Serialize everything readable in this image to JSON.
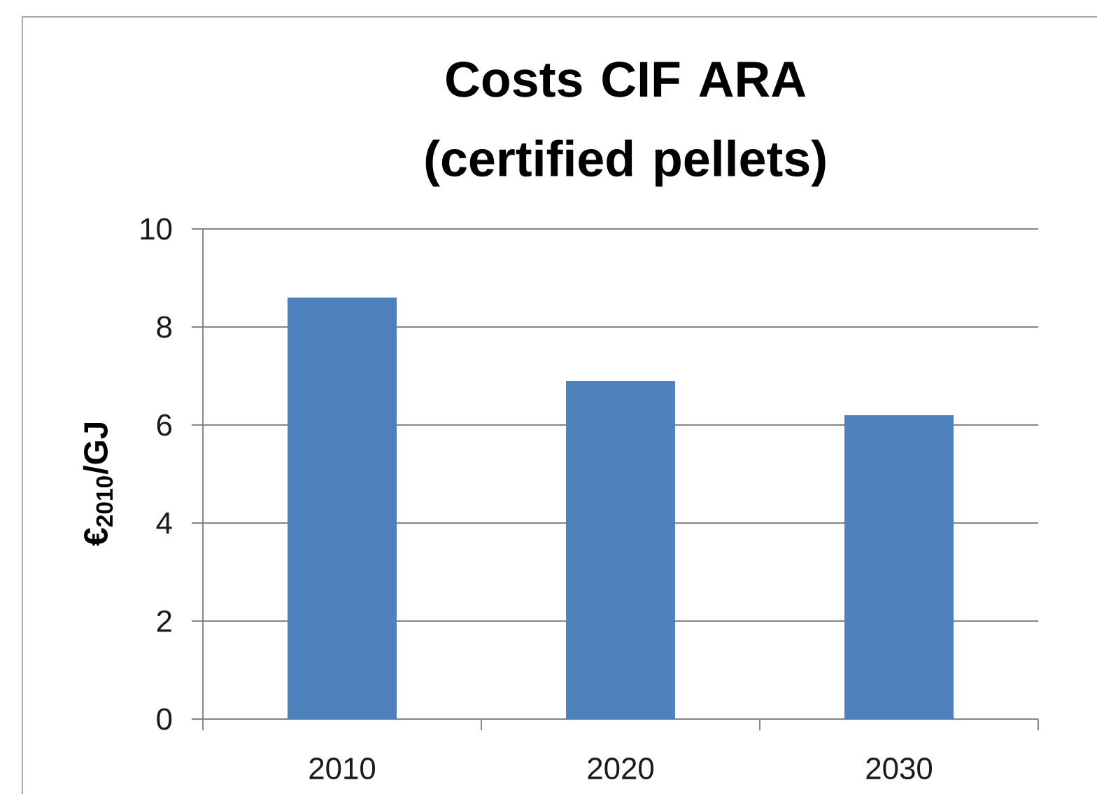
{
  "chart_data": {
    "type": "bar",
    "title": "Costs CIF ARA (certified pellets)",
    "ylabel": "€$_{2010}$/GJ",
    "categories": [
      "2010",
      "2020",
      "2030"
    ],
    "values": [
      8.6,
      6.9,
      6.2
    ],
    "color": "#4f81bd",
    "ylim": [
      0,
      10
    ],
    "yticks": [
      0,
      2,
      4,
      6,
      8,
      10
    ],
    "grid": "y"
  }
}
